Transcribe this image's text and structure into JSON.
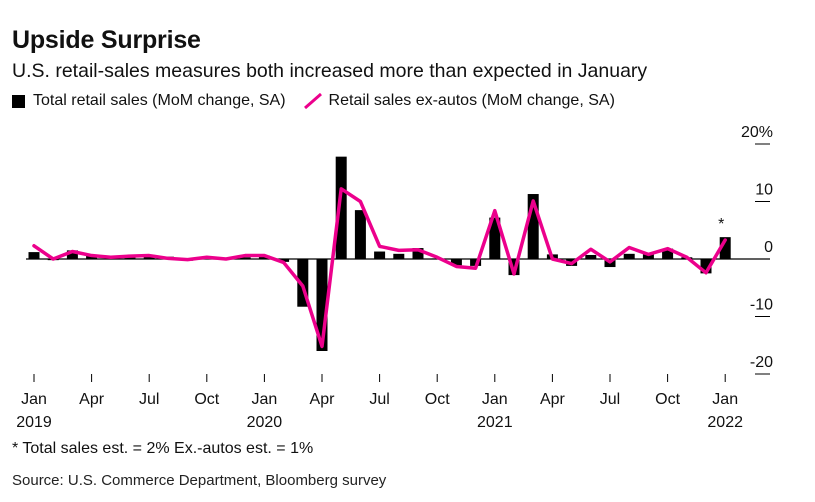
{
  "header": {
    "title": "Upside Surprise",
    "subtitle": "U.S. retail-sales measures both increased more than expected in January"
  },
  "legend": {
    "total_label": "Total retail sales (MoM change, SA)",
    "exautos_label": "Retail sales ex-autos (MoM change, SA)"
  },
  "footnote": "* Total sales est. = 2% Ex.-autos est. = 1%",
  "source": "Source: U.S. Commerce Department, Bloomberg survey",
  "colors": {
    "bars": "#000000",
    "line": "#ec008c",
    "axis": "#000000"
  },
  "chart_data": {
    "type": "bar+line",
    "x": [
      "2019-01",
      "2019-02",
      "2019-03",
      "2019-04",
      "2019-05",
      "2019-06",
      "2019-07",
      "2019-08",
      "2019-09",
      "2019-10",
      "2019-11",
      "2019-12",
      "2020-01",
      "2020-02",
      "2020-03",
      "2020-04",
      "2020-05",
      "2020-06",
      "2020-07",
      "2020-08",
      "2020-09",
      "2020-10",
      "2020-11",
      "2020-12",
      "2021-01",
      "2021-02",
      "2021-03",
      "2021-04",
      "2021-05",
      "2021-06",
      "2021-07",
      "2021-08",
      "2021-09",
      "2021-10",
      "2021-11",
      "2021-12",
      "2022-01"
    ],
    "series": [
      {
        "name": "Total retail sales (MoM change, SA)",
        "type": "bar",
        "values": [
          1.2,
          -0.2,
          1.5,
          0.6,
          0.3,
          0.4,
          0.6,
          0.4,
          -0.3,
          0.3,
          0.2,
          0.3,
          0.6,
          -0.5,
          -8.3,
          -16.0,
          17.8,
          8.5,
          1.3,
          0.9,
          1.9,
          0.1,
          -1.1,
          -1.2,
          7.2,
          -2.8,
          11.3,
          0.8,
          -1.2,
          0.7,
          -1.4,
          0.9,
          0.8,
          1.8,
          0.3,
          -2.5,
          3.8
        ]
      },
      {
        "name": "Retail sales ex-autos (MoM change, SA)",
        "type": "line",
        "values": [
          2.3,
          0.0,
          1.3,
          0.6,
          0.3,
          0.5,
          0.6,
          0.1,
          -0.1,
          0.3,
          0.0,
          0.6,
          0.6,
          -0.6,
          -4.7,
          -15.2,
          12.2,
          10.0,
          2.2,
          1.5,
          1.6,
          0.3,
          -1.3,
          -1.6,
          8.4,
          -2.6,
          10.1,
          0.0,
          -0.8,
          1.7,
          -0.5,
          2.0,
          0.8,
          1.8,
          0.3,
          -2.4,
          3.3
        ]
      }
    ],
    "x_ticks": [
      {
        "label": "Jan",
        "sub": "2019"
      },
      {
        "label": "Apr",
        "sub": ""
      },
      {
        "label": "Jul",
        "sub": ""
      },
      {
        "label": "Oct",
        "sub": ""
      },
      {
        "label": "Jan",
        "sub": "2020"
      },
      {
        "label": "Apr",
        "sub": ""
      },
      {
        "label": "Jul",
        "sub": ""
      },
      {
        "label": "Oct",
        "sub": ""
      },
      {
        "label": "Jan",
        "sub": "2021"
      },
      {
        "label": "Apr",
        "sub": ""
      },
      {
        "label": "Jul",
        "sub": ""
      },
      {
        "label": "Oct",
        "sub": ""
      },
      {
        "label": "Jan",
        "sub": "2022"
      }
    ],
    "y_ticks": [
      "20%",
      "10",
      "0",
      "-10",
      "-20"
    ],
    "y_tick_values": [
      20,
      10,
      0,
      -10,
      -20
    ],
    "ylim": [
      -20,
      20
    ],
    "annotation": "*",
    "grid": false,
    "legend_position": "top-left"
  }
}
